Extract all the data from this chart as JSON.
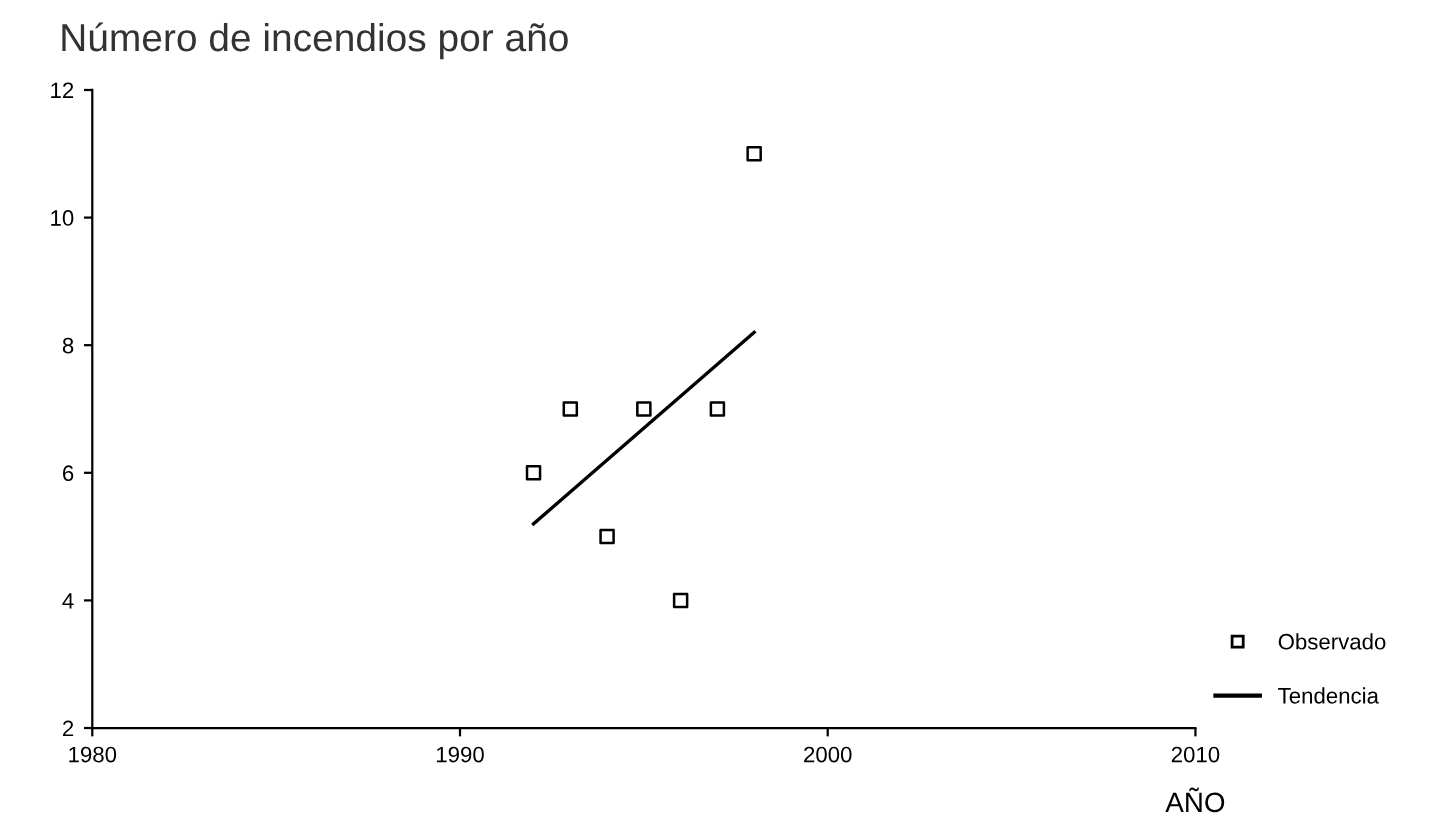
{
  "chart_data": {
    "type": "scatter",
    "title": "Número de incendios por año",
    "xlabel": "AÑO",
    "xlim": [
      1980,
      2010
    ],
    "xticks": [
      1980,
      1990,
      2000,
      2010
    ],
    "ylim": [
      2,
      12
    ],
    "yticks": [
      2,
      4,
      6,
      8,
      10,
      12
    ],
    "grid": false,
    "legend": "bottom right",
    "series": [
      {
        "name": "Observado",
        "marker": "square",
        "color": "#000000",
        "x": [
          1992,
          1993,
          1994,
          1995,
          1996,
          1997,
          1998
        ],
        "values": [
          6,
          7,
          5,
          7,
          4,
          7,
          11
        ]
      },
      {
        "name": "Tendencia",
        "type": "line",
        "line_style": "solid",
        "color": "#000000",
        "x": [
          1992,
          1998
        ],
        "values": [
          5.2,
          8.2
        ]
      }
    ]
  }
}
